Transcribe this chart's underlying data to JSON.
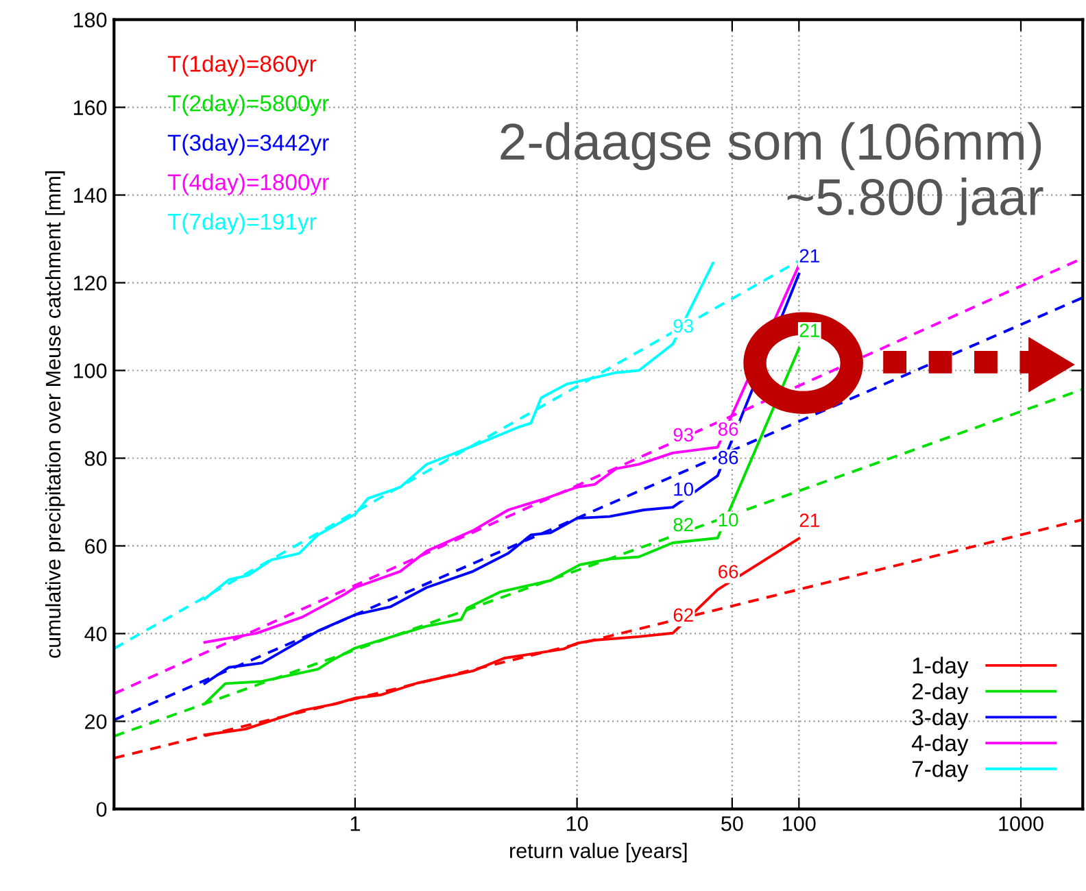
{
  "chart_data": {
    "type": "line",
    "xlabel": "return value [years]",
    "ylabel": "cumulative precipitation over Meuse catchment [mm]",
    "log": "x",
    "xlim": [
      0.082,
      1900
    ],
    "xticks": [
      1,
      10,
      50,
      100,
      1000
    ],
    "ylim": [
      0,
      180
    ],
    "yticks": [
      0,
      20,
      40,
      60,
      80,
      100,
      120,
      140,
      160,
      180
    ],
    "grid": true,
    "legend": "bottom right",
    "marker": "none",
    "series": [
      {
        "name": "1-day",
        "color": "#ff0000",
        "line_style": "solid",
        "x": [
          0.21,
          0.32,
          0.4,
          0.58,
          0.82,
          1.0,
          1.3,
          1.9,
          3.4,
          4.7,
          8.7,
          10,
          12,
          19,
          27,
          43,
          100
        ],
        "values": [
          16.9,
          18.2,
          19.8,
          22.5,
          24,
          25.3,
          26,
          28.7,
          31.5,
          34.4,
          36.5,
          37.8,
          38.5,
          39.3,
          40.1,
          50,
          61.7
        ]
      },
      {
        "name": "2-day",
        "color": "#00e000",
        "line_style": "solid",
        "x": [
          0.21,
          0.26,
          0.38,
          0.68,
          0.78,
          1.0,
          1.3,
          2.1,
          3.0,
          3.2,
          4.5,
          7.6,
          10.3,
          14,
          19,
          27,
          43,
          100
        ],
        "values": [
          24,
          28.6,
          29.1,
          31.9,
          33.8,
          36.7,
          38.5,
          41.7,
          43.2,
          45.8,
          49.5,
          52.1,
          55.7,
          57,
          57.5,
          60.7,
          61.8,
          105
        ]
      },
      {
        "name": "3-day",
        "color": "#0000ff",
        "line_style": "solid",
        "x": [
          0.21,
          0.27,
          0.38,
          0.51,
          0.68,
          1.0,
          1.44,
          2.1,
          3.4,
          4.9,
          6.2,
          7.6,
          10,
          14,
          20,
          27,
          43,
          100
        ],
        "values": [
          28.6,
          32.3,
          33.3,
          37,
          40.6,
          44.3,
          46.1,
          50.5,
          54.2,
          58.3,
          62.5,
          63,
          66.3,
          66.7,
          68.2,
          68.8,
          76,
          122
        ]
      },
      {
        "name": "4-day",
        "color": "#ff00ff",
        "line_style": "solid",
        "x": [
          0.21,
          0.36,
          0.58,
          0.9,
          1.0,
          1.6,
          2.1,
          3.4,
          4.9,
          7.2,
          10,
          12,
          15,
          19,
          27,
          43,
          100
        ],
        "values": [
          38,
          40.1,
          43.8,
          49,
          50.5,
          54.2,
          58.8,
          63.5,
          68.2,
          70.8,
          73.4,
          74,
          77.6,
          78.6,
          81.2,
          82.5,
          124
        ]
      },
      {
        "name": "7-day",
        "color": "#00ffff",
        "line_style": "solid",
        "x": [
          0.21,
          0.27,
          0.33,
          0.42,
          0.56,
          0.68,
          1.0,
          1.14,
          1.6,
          2.1,
          3.4,
          5.4,
          6.2,
          6.9,
          9,
          15,
          19,
          27,
          41
        ],
        "values": [
          47.9,
          52.3,
          53.3,
          56.8,
          58.3,
          62.5,
          67.2,
          70.8,
          73.4,
          78.6,
          82.8,
          87,
          88,
          93.8,
          96.9,
          99.5,
          100,
          106,
          124.5
        ]
      },
      {
        "color": "#ff0000",
        "line_style": "dashed",
        "x": [
          0.082,
          1900
        ],
        "values": [
          11.6,
          66
        ]
      },
      {
        "color": "#00e000",
        "line_style": "dashed",
        "x": [
          0.082,
          1900
        ],
        "values": [
          16.6,
          95.7
        ]
      },
      {
        "color": "#0000ff",
        "line_style": "dashed",
        "x": [
          0.082,
          1900
        ],
        "values": [
          20.3,
          116.6
        ]
      },
      {
        "color": "#ff00ff",
        "line_style": "dashed",
        "x": [
          0.082,
          1900
        ],
        "values": [
          26.3,
          125.6
        ]
      },
      {
        "color": "#00ffff",
        "line_style": "dashed",
        "x": [
          0.082,
          100
        ],
        "values": [
          36.6,
          125
        ]
      }
    ],
    "annotations": [
      "T(1day)=860yr",
      "T(2day)=5800yr",
      "T(3day)=3442yr",
      "T(4day)=1800yr",
      "T(7day)=191yr",
      "2-daagse som (106mm)\n~5.800 jaar",
      {
        "text": "62",
        "x": 27,
        "y": 40.1
      },
      {
        "text": "66",
        "x": 43,
        "y": 50
      },
      {
        "text": "21",
        "x": 100,
        "y": 61.7
      },
      {
        "text": "82",
        "x": 27,
        "y": 60.7
      },
      {
        "text": "10",
        "x": 43,
        "y": 61.8
      },
      {
        "text": "21",
        "x": 100,
        "y": 105
      },
      {
        "text": "10",
        "x": 27,
        "y": 68.8
      },
      {
        "text": "86",
        "x": 43,
        "y": 76
      },
      {
        "text": "21",
        "x": 100,
        "y": 122
      },
      {
        "text": "93",
        "x": 27,
        "y": 81.2
      },
      {
        "text": "86",
        "x": 43,
        "y": 82.5
      },
      {
        "text": "93",
        "x": 27,
        "y": 106
      }
    ]
  }
}
